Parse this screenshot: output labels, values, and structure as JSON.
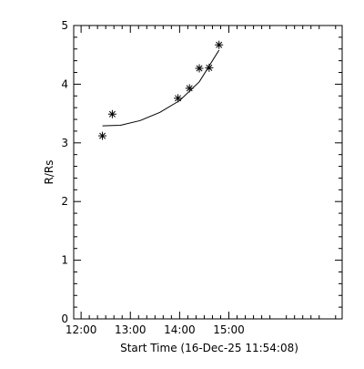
{
  "chart_data": {
    "type": "scatter",
    "title": "",
    "xlabel": "Start Time (16-Dec-25 11:54:08)",
    "ylabel": "R/Rs",
    "x_ticks": [
      "12:00",
      "13:00",
      "14:00",
      "15:00"
    ],
    "x_tick_hours": [
      12,
      13,
      14,
      15
    ],
    "y_ticks": [
      "0",
      "1",
      "2",
      "3",
      "4",
      "5"
    ],
    "y_tick_values": [
      0,
      1,
      2,
      3,
      4,
      5
    ],
    "xlim_hours": [
      11.85,
      17.3
    ],
    "ylim": [
      0,
      5
    ],
    "marker": "asterisk",
    "points": [
      {
        "x": "12:26",
        "y": 3.12
      },
      {
        "x": "12:38",
        "y": 3.49
      },
      {
        "x": "13:58",
        "y": 3.76
      },
      {
        "x": "14:12",
        "y": 3.93
      },
      {
        "x": "14:24",
        "y": 4.27
      },
      {
        "x": "14:36",
        "y": 4.28
      },
      {
        "x": "14:48",
        "y": 4.67
      }
    ],
    "fit_curve": {
      "type": "quadratic",
      "points": [
        {
          "x": "12:26",
          "y": 3.29
        },
        {
          "x": "12:48",
          "y": 3.3
        },
        {
          "x": "13:12",
          "y": 3.38
        },
        {
          "x": "13:36",
          "y": 3.52
        },
        {
          "x": "14:00",
          "y": 3.72
        },
        {
          "x": "14:24",
          "y": 4.04
        },
        {
          "x": "14:48",
          "y": 4.58
        }
      ]
    },
    "grid": false
  }
}
